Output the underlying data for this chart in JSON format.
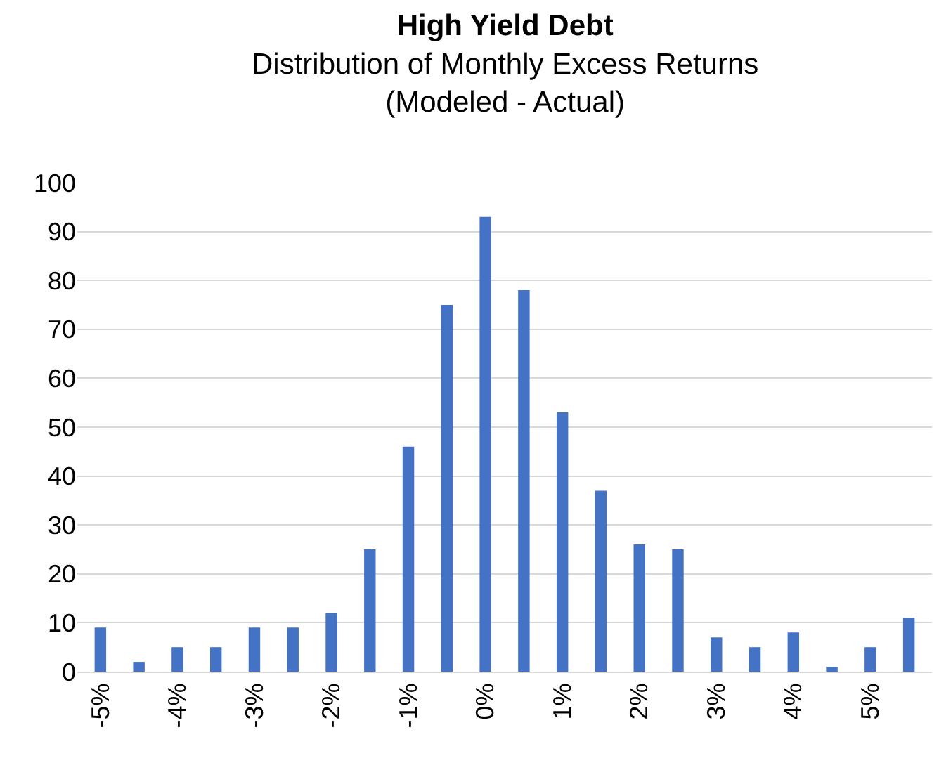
{
  "chart_data": {
    "type": "bar",
    "title": "High Yield Debt",
    "subtitle": "Distribution of Monthly Excess Returns\n(Modeled - Actual)",
    "categories": [
      "-5%",
      null,
      "-4%",
      null,
      "-3%",
      null,
      "-2%",
      null,
      "-1%",
      null,
      "0%",
      null,
      "1%",
      null,
      "2%",
      null,
      "3%",
      null,
      "4%",
      null,
      "5%",
      null
    ],
    "values": [
      9,
      2,
      5,
      5,
      9,
      9,
      12,
      25,
      46,
      75,
      93,
      78,
      53,
      37,
      26,
      25,
      7,
      5,
      8,
      1,
      5,
      11
    ],
    "color": "#4472c4",
    "ylim": [
      0,
      100
    ],
    "yticks": [
      0,
      10,
      20,
      30,
      40,
      50,
      60,
      70,
      80,
      90,
      100
    ],
    "grid": "y"
  }
}
